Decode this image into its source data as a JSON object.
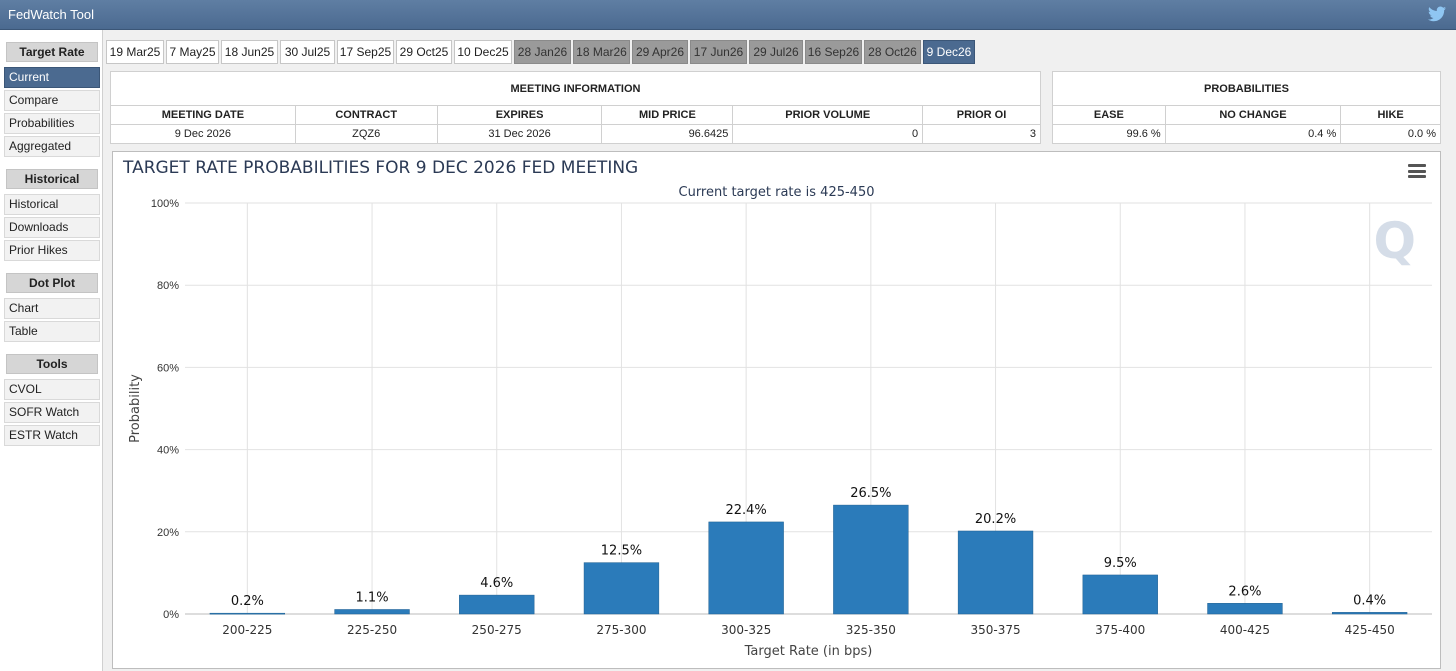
{
  "app": {
    "title": "FedWatch Tool",
    "share_icon": "twitter-icon"
  },
  "sidebar": {
    "groups": [
      {
        "title": "Target Rate",
        "items": [
          "Current",
          "Compare",
          "Probabilities",
          "Aggregated"
        ]
      },
      {
        "title": "Historical",
        "items": [
          "Historical",
          "Downloads",
          "Prior Hikes"
        ]
      },
      {
        "title": "Dot Plot",
        "items": [
          "Chart",
          "Table"
        ]
      },
      {
        "title": "Tools",
        "items": [
          "CVOL",
          "SOFR Watch",
          "ESTR Watch"
        ]
      }
    ],
    "active_item": "Current"
  },
  "tabs": [
    {
      "label": "19 Mar25",
      "state": "past"
    },
    {
      "label": "7 May25",
      "state": "past"
    },
    {
      "label": "18 Jun25",
      "state": "past"
    },
    {
      "label": "30 Jul25",
      "state": "past"
    },
    {
      "label": "17 Sep25",
      "state": "past"
    },
    {
      "label": "29 Oct25",
      "state": "past"
    },
    {
      "label": "10 Dec25",
      "state": "past"
    },
    {
      "label": "28 Jan26",
      "state": "future"
    },
    {
      "label": "18 Mar26",
      "state": "future"
    },
    {
      "label": "29 Apr26",
      "state": "future"
    },
    {
      "label": "17 Jun26",
      "state": "future"
    },
    {
      "label": "29 Jul26",
      "state": "future"
    },
    {
      "label": "16 Sep26",
      "state": "future"
    },
    {
      "label": "28 Oct26",
      "state": "future"
    },
    {
      "label": "9 Dec26",
      "state": "active"
    }
  ],
  "meeting_info": {
    "header": "MEETING INFORMATION",
    "columns": [
      "MEETING DATE",
      "CONTRACT",
      "EXPIRES",
      "MID PRICE",
      "PRIOR VOLUME",
      "PRIOR OI"
    ],
    "row": [
      "9 Dec 2026",
      "ZQZ6",
      "31 Dec 2026",
      "96.6425",
      "0",
      "3"
    ]
  },
  "probabilities": {
    "header": "PROBABILITIES",
    "columns": [
      "EASE",
      "NO CHANGE",
      "HIKE"
    ],
    "row": [
      "99.6 %",
      "0.4 %",
      "0.0 %"
    ]
  },
  "chart_data": {
    "type": "bar",
    "title": "TARGET RATE PROBABILITIES FOR 9 DEC 2026 FED MEETING",
    "subtitle": "Current target rate is 425-450",
    "xlabel": "Target Rate (in bps)",
    "ylabel": "Probability",
    "categories": [
      "200-225",
      "225-250",
      "250-275",
      "275-300",
      "300-325",
      "325-350",
      "350-375",
      "375-400",
      "400-425",
      "425-450"
    ],
    "values": [
      0.2,
      1.1,
      4.6,
      12.5,
      22.4,
      26.5,
      20.2,
      9.5,
      2.6,
      0.4
    ],
    "data_labels": [
      "0.2%",
      "1.1%",
      "4.6%",
      "12.5%",
      "22.4%",
      "26.5%",
      "20.2%",
      "9.5%",
      "2.6%",
      "0.4%"
    ],
    "ylim": [
      0,
      100
    ],
    "yticks": [
      0,
      20,
      40,
      60,
      80,
      100
    ],
    "ytick_labels": [
      "0%",
      "20%",
      "40%",
      "60%",
      "80%",
      "100%"
    ],
    "grid": true,
    "legend": "none",
    "bar_color": "#2b7bba",
    "menu_icon": "hamburger-menu-icon"
  }
}
